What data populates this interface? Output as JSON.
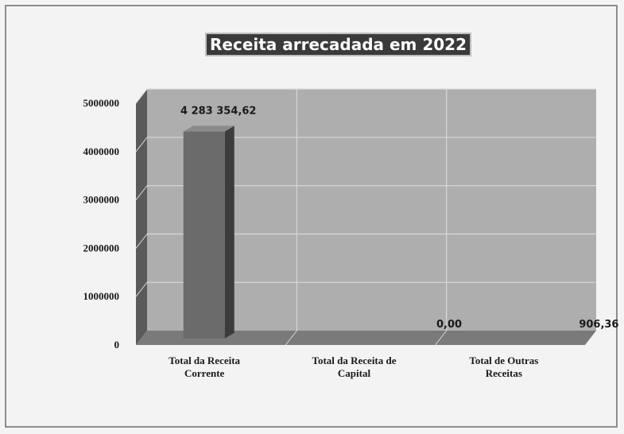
{
  "chart_data": {
    "type": "bar",
    "title": "Receita arrecadada em 2022",
    "categories": [
      [
        "Total da Receita",
        "Corrente"
      ],
      [
        "Total da Receita de",
        "Capital"
      ],
      [
        "Total de Outras",
        "Receitas"
      ]
    ],
    "values": [
      4283354.62,
      0,
      906.36
    ],
    "data_labels": [
      "4 283 354,62",
      "0,00",
      "906,36"
    ],
    "ylim": [
      0,
      5000000
    ],
    "yticks": [
      0,
      1000000,
      2000000,
      3000000,
      4000000,
      5000000
    ],
    "ytick_labels": [
      "0",
      "1000000",
      "2000000",
      "3000000",
      "4000000",
      "5000000"
    ],
    "xlabel": "",
    "ylabel": "",
    "grid": true,
    "legend": "none",
    "colors": {
      "bar": "#6b6b6b",
      "bar_side": "#3c3c3c",
      "bar_top": "#8a8a8a",
      "plot_back": "#aeaeae",
      "side_wall": "#5a5a5a",
      "floor": "#7a7a7a",
      "grid": "#d8d8d8"
    }
  }
}
